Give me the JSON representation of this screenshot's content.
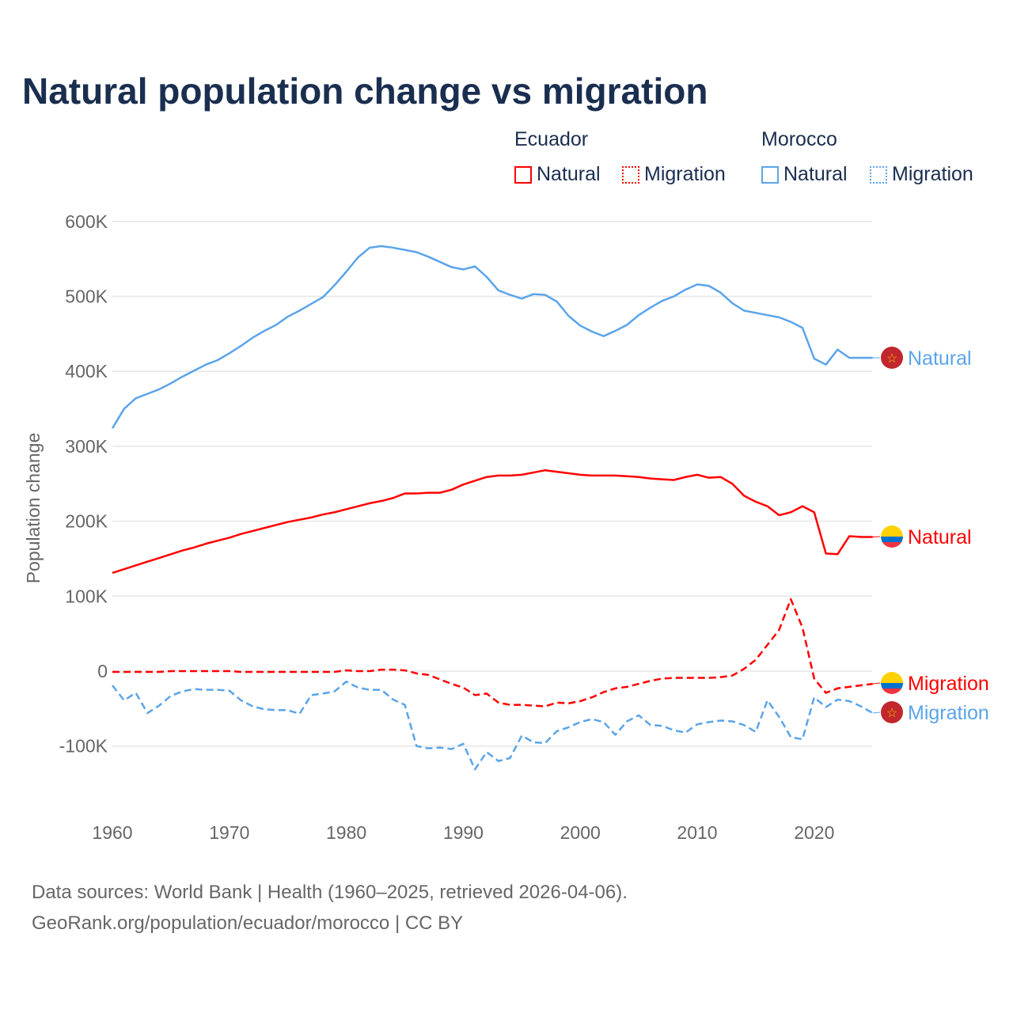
{
  "title": "Natural population change vs migration",
  "legend": {
    "groups": [
      {
        "name": "Ecuador",
        "color": "#ff0000"
      },
      {
        "name": "Morocco",
        "color": "#5ba4ea"
      }
    ],
    "natural_label": "Natural",
    "migration_label": "Migration"
  },
  "footer": {
    "line1": "Data sources: World Bank | Health (1960–2025, retrieved 2026-04-06).",
    "line2": "GeoRank.org/population/ecuador/morocco | CC BY"
  },
  "chart_data": {
    "type": "line",
    "title": "Natural population change vs migration",
    "ylabel": "Population change",
    "xlabel": "",
    "ylim": [
      -130000,
      600000
    ],
    "xlim": [
      1960,
      2025
    ],
    "yticks": [
      {
        "v": 600000,
        "label": "600K"
      },
      {
        "v": 500000,
        "label": "500K"
      },
      {
        "v": 400000,
        "label": "400K"
      },
      {
        "v": 300000,
        "label": "300K"
      },
      {
        "v": 200000,
        "label": "200K"
      },
      {
        "v": 100000,
        "label": "100K"
      },
      {
        "v": 0,
        "label": "0"
      },
      {
        "v": -100000,
        "label": "-100K"
      }
    ],
    "xticks": [
      1960,
      1970,
      1980,
      1990,
      2000,
      2010,
      2020
    ],
    "x_start": 1960,
    "series": [
      {
        "name": "Morocco Natural",
        "label": "Natural",
        "color": "#5ba4ea",
        "dash": false,
        "flag": "morocco",
        "values_k": [
          324,
          350,
          364,
          370,
          376,
          384,
          393,
          401,
          409,
          415,
          424,
          434,
          445,
          454,
          462,
          473,
          481,
          490,
          499,
          515,
          533,
          552,
          565,
          567,
          565,
          562,
          559,
          553,
          546,
          539,
          536,
          540,
          526,
          508,
          502,
          497,
          503,
          502,
          493,
          474,
          461,
          453,
          447,
          454,
          462,
          475,
          485,
          494,
          500,
          509,
          516,
          514,
          505,
          491,
          481,
          478,
          475,
          472,
          466,
          458,
          417,
          409,
          429,
          418,
          418,
          418
        ]
      },
      {
        "name": "Ecuador Natural",
        "label": "Natural",
        "color": "#ff0000",
        "dash": false,
        "flag": "ecuador",
        "values_k": [
          131,
          136,
          141,
          146,
          151,
          156,
          161,
          165,
          170,
          174,
          178,
          183,
          187,
          191,
          195,
          199,
          202,
          205,
          209,
          212,
          216,
          220,
          224,
          227,
          231,
          237,
          237,
          238,
          238,
          242,
          249,
          254,
          259,
          261,
          261,
          262,
          265,
          268,
          266,
          264,
          262,
          261,
          261,
          261,
          260,
          259,
          257,
          256,
          255,
          259,
          262,
          258,
          259,
          250,
          234,
          226,
          220,
          208,
          212,
          220,
          212,
          157,
          156,
          180,
          179,
          179
        ]
      },
      {
        "name": "Ecuador Migration",
        "label": "Migration",
        "color": "#ff0000",
        "dash": true,
        "flag": "ecuador",
        "values_k": [
          -1,
          -1,
          -1,
          -1,
          -1,
          0,
          0,
          0,
          0,
          0,
          0,
          -1,
          -1,
          -1,
          -1,
          -1,
          -1,
          -1,
          -1,
          -1,
          1,
          0,
          0,
          2,
          2,
          1,
          -3,
          -5,
          -11,
          -17,
          -22,
          -32,
          -30,
          -42,
          -45,
          -45,
          -46,
          -47,
          -42,
          -43,
          -40,
          -35,
          -28,
          -23,
          -21,
          -17,
          -13,
          -10,
          -9,
          -9,
          -9,
          -9,
          -8,
          -6,
          3,
          15,
          35,
          55,
          96,
          58,
          -10,
          -29,
          -23,
          -21,
          -19,
          -17
        ]
      },
      {
        "name": "Morocco Migration",
        "label": "Migration",
        "color": "#5ba4ea",
        "dash": true,
        "flag": "morocco",
        "values_k": [
          -19,
          -39,
          -29,
          -56,
          -46,
          -33,
          -27,
          -24,
          -25,
          -25,
          -26,
          -39,
          -47,
          -51,
          -52,
          -52,
          -57,
          -32,
          -30,
          -27,
          -14,
          -22,
          -25,
          -25,
          -38,
          -45,
          -100,
          -103,
          -102,
          -104,
          -97,
          -131,
          -108,
          -120,
          -116,
          -86,
          -95,
          -96,
          -80,
          -75,
          -68,
          -64,
          -68,
          -85,
          -67,
          -59,
          -72,
          -73,
          -79,
          -82,
          -71,
          -68,
          -66,
          -67,
          -72,
          -81,
          -39,
          -61,
          -88,
          -91,
          -35,
          -48,
          -38,
          -40,
          -47,
          -56
        ]
      }
    ]
  }
}
